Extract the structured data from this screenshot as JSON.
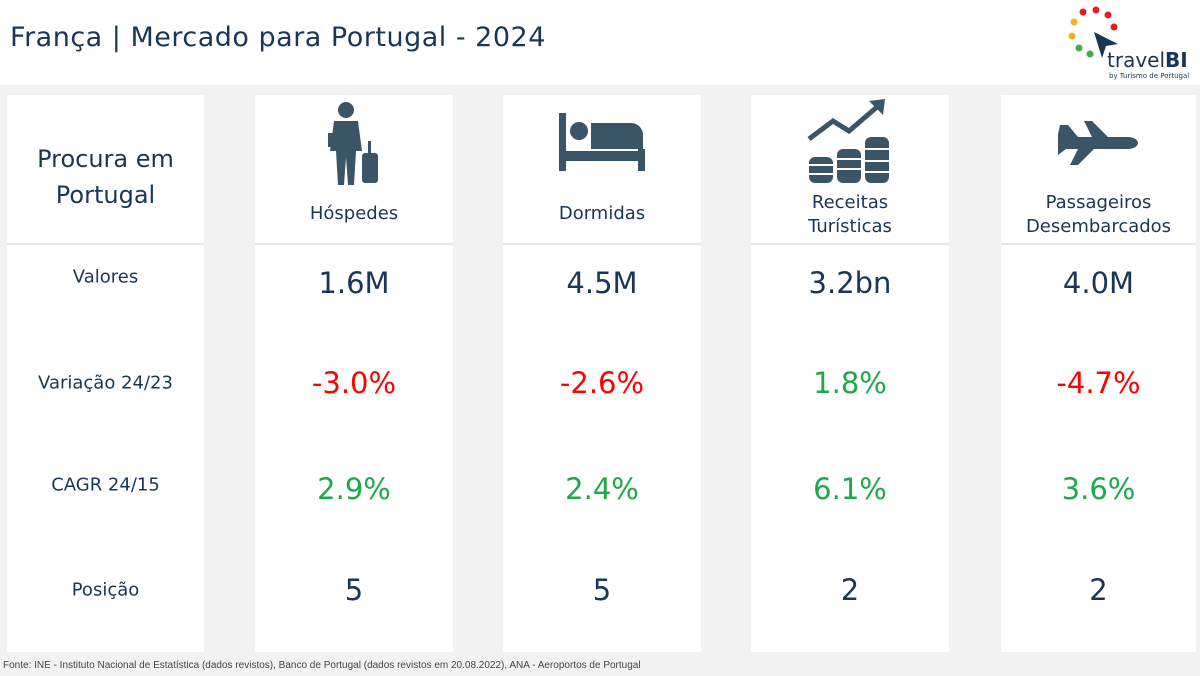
{
  "header": {
    "title": "França | Mercado para Portugal - 2024",
    "logo_text": "travelBI",
    "logo_sub": "by Turismo de Portugal"
  },
  "label_column": {
    "title_line1": "Procura em",
    "title_line2": "Portugal",
    "rows": [
      "Valores",
      "Variação 24/23",
      "CAGR 24/15",
      "Posição"
    ]
  },
  "metrics": [
    {
      "label": "Hóspedes",
      "icon": "traveler-icon",
      "valor": "1.6M",
      "variacao": "-3.0%",
      "cagr": "2.9%",
      "posicao": "5"
    },
    {
      "label": "Dormidas",
      "icon": "bed-icon",
      "valor": "4.5M",
      "variacao": "-2.6%",
      "cagr": "2.4%",
      "posicao": "5"
    },
    {
      "label_line1": "Receitas",
      "label_line2": "Turísticas",
      "icon": "coins-growth-icon",
      "valor": "3.2bn",
      "variacao": "1.8%",
      "cagr": "6.1%",
      "posicao": "2"
    },
    {
      "label_line1": "Passageiros",
      "label_line2": "Desembarcados",
      "icon": "airplane-icon",
      "valor": "4.0M",
      "variacao": "-4.7%",
      "cagr": "3.6%",
      "posicao": "2"
    }
  ],
  "colors": {
    "navy": "#1b3556",
    "negative": "#ff0000",
    "positive": "#1ea84b",
    "icon": "#3b5568"
  },
  "footer": "Fonte: INE - Instituto Nacional de Estatística (dados revistos), Banco de Portugal (dados revistos em 20.08.2022), ANA - Aeroportos de Portugal"
}
